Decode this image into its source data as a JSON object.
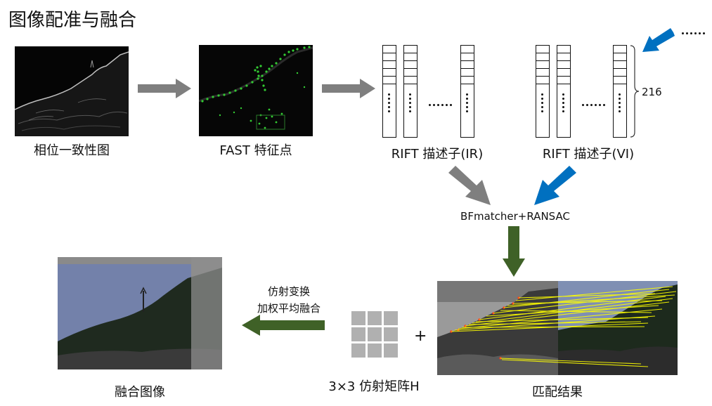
{
  "title": "图像配准与融合",
  "captions": {
    "phase": "相位一致性图",
    "fast": "FAST 特征点",
    "rift_ir": "RIFT 描述子(IR)",
    "rift_vi": "RIFT 描述子(VI)",
    "matcher": "BFmatcher+RANSAC",
    "match_result": "匹配结果",
    "matrix": "3×3 仿射矩阵H",
    "fused": "融合图像",
    "transform_line1": "仿射变换",
    "transform_line2": "加权平均融合",
    "count_216": "216",
    "ellipsis": "……",
    "plus": "+"
  },
  "colors": {
    "gray_arrow": "#7f7f7f",
    "blue_arrow": "#0070c0",
    "green_arrow": "#3f6127",
    "feature_green": "#33cc33",
    "match_yellow": "#ffff00"
  }
}
